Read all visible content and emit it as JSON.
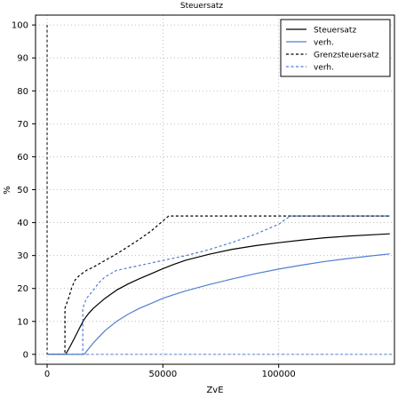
{
  "chart_data": {
    "type": "line",
    "title": "Steuersatz",
    "xlabel": "ZvE",
    "ylabel": "%",
    "xlim": [
      -5000,
      150000
    ],
    "ylim": [
      -3,
      103
    ],
    "xticks": [
      0,
      50000,
      100000
    ],
    "xtick_labels": [
      "0",
      "50000",
      "100000"
    ],
    "yticks": [
      0,
      10,
      20,
      30,
      40,
      50,
      60,
      70,
      80,
      90,
      100
    ],
    "ytick_labels": [
      "0",
      "10",
      "20",
      "30",
      "40",
      "50",
      "60",
      "70",
      "80",
      "90",
      "100"
    ],
    "grid": true,
    "legend_position": "top-right",
    "series": [
      {
        "name": "Steuersatz",
        "color": "#000000",
        "dash": "solid",
        "x": [
          0,
          8000,
          10000,
          12000,
          14000,
          16000,
          18000,
          20000,
          25000,
          30000,
          35000,
          40000,
          45000,
          50000,
          55000,
          60000,
          70000,
          80000,
          90000,
          100000,
          110000,
          120000,
          130000,
          140000,
          148000
        ],
        "y": [
          0,
          0,
          2.5,
          5.2,
          8,
          10.6,
          12.5,
          14,
          17,
          19.5,
          21.4,
          23,
          24.5,
          26,
          27.4,
          28.6,
          30.4,
          31.9,
          33,
          33.9,
          34.7,
          35.4,
          35.9,
          36.3,
          36.6
        ]
      },
      {
        "name": "verh.",
        "color": "#4f7fd0",
        "dash": "solid",
        "x": [
          0,
          16000,
          18000,
          20000,
          25000,
          30000,
          35000,
          40000,
          45000,
          50000,
          55000,
          60000,
          70000,
          80000,
          90000,
          100000,
          110000,
          120000,
          130000,
          140000,
          148000
        ],
        "y": [
          0,
          0,
          1.8,
          3.5,
          7.2,
          10,
          12.2,
          14,
          15.5,
          17,
          18.2,
          19.3,
          21.2,
          22.9,
          24.5,
          25.9,
          27.1,
          28.2,
          29.1,
          29.9,
          30.5
        ]
      },
      {
        "name": "Grenzsteuersatz",
        "color": "#000000",
        "dash": "dashed",
        "x": [
          0,
          7700,
          7700,
          9500,
          10500,
          12000,
          14000,
          17000,
          20000,
          25000,
          30000,
          35000,
          40000,
          45000,
          52500,
          148000
        ],
        "y": [
          0,
          0,
          14,
          17.5,
          20,
          22.5,
          24,
          25.5,
          26.5,
          28.5,
          30.5,
          32.7,
          35,
          37.5,
          42,
          42
        ]
      },
      {
        "name": "verh.",
        "color": "#4f7fd0",
        "dash": "dashed",
        "x": [
          0,
          15400,
          15400,
          17000,
          20000,
          22000,
          25000,
          30000,
          40000,
          50000,
          60000,
          70000,
          80000,
          90000,
          100000,
          105000,
          148000
        ],
        "y": [
          0,
          0,
          14,
          17,
          19.5,
          21.5,
          23.5,
          25.5,
          27,
          28.5,
          30,
          31.8,
          34,
          36.5,
          39.5,
          42,
          42
        ]
      }
    ],
    "reference_lines": [
      {
        "orientation": "vertical",
        "x": 0,
        "color": "#000000",
        "dash": "dashed"
      },
      {
        "orientation": "horizontal",
        "y": 0,
        "color": "#4f7fd0",
        "dash": "dashed"
      }
    ]
  }
}
